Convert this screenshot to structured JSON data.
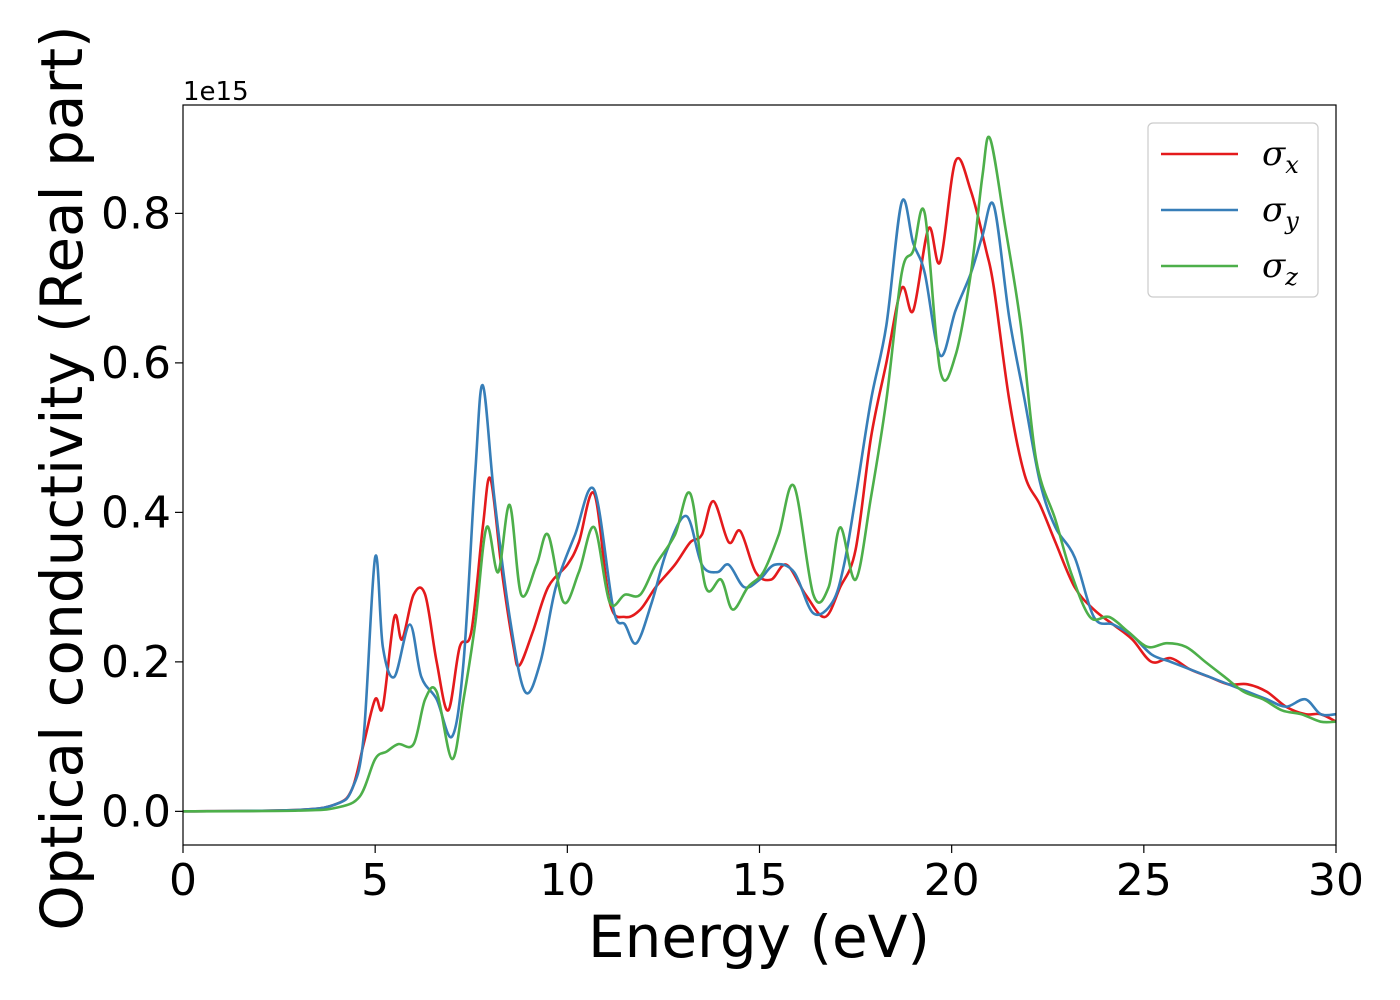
{
  "chart_data": {
    "type": "line",
    "xlabel": "Energy (eV)",
    "ylabel": "Optical conductivity (Real part)",
    "y_offset_label": "1e15",
    "xlim": [
      0,
      30
    ],
    "ylim": [
      -0.045,
      0.945
    ],
    "y_scale": "×1e15",
    "x_ticks": [
      0,
      5,
      10,
      15,
      20,
      25,
      30
    ],
    "x_tick_labels": [
      "0",
      "5",
      "10",
      "15",
      "20",
      "25",
      "30"
    ],
    "y_ticks": [
      0.0,
      0.2,
      0.4,
      0.6,
      0.8
    ],
    "y_tick_labels": [
      "0.0",
      "0.2",
      "0.4",
      "0.6",
      "0.8"
    ],
    "grid": false,
    "legend_position": "top-right",
    "series": [
      {
        "name": "σ",
        "subscript": "x",
        "color": "#e41a1c",
        "points": [
          [
            0,
            0
          ],
          [
            3,
            0.002
          ],
          [
            4,
            0.01
          ],
          [
            4.4,
            0.03
          ],
          [
            4.7,
            0.09
          ],
          [
            5.0,
            0.15
          ],
          [
            5.2,
            0.14
          ],
          [
            5.5,
            0.26
          ],
          [
            5.7,
            0.23
          ],
          [
            6.0,
            0.29
          ],
          [
            6.3,
            0.29
          ],
          [
            6.6,
            0.2
          ],
          [
            6.9,
            0.135
          ],
          [
            7.2,
            0.22
          ],
          [
            7.5,
            0.24
          ],
          [
            7.8,
            0.38
          ],
          [
            8.0,
            0.445
          ],
          [
            8.3,
            0.32
          ],
          [
            8.6,
            0.22
          ],
          [
            8.75,
            0.195
          ],
          [
            9.1,
            0.24
          ],
          [
            9.5,
            0.3
          ],
          [
            10.0,
            0.33
          ],
          [
            10.3,
            0.36
          ],
          [
            10.7,
            0.425
          ],
          [
            11.1,
            0.28
          ],
          [
            11.5,
            0.26
          ],
          [
            11.9,
            0.27
          ],
          [
            12.3,
            0.3
          ],
          [
            12.8,
            0.33
          ],
          [
            13.2,
            0.36
          ],
          [
            13.5,
            0.37
          ],
          [
            13.8,
            0.415
          ],
          [
            14.2,
            0.36
          ],
          [
            14.5,
            0.375
          ],
          [
            14.9,
            0.32
          ],
          [
            15.3,
            0.31
          ],
          [
            15.7,
            0.33
          ],
          [
            16.2,
            0.29
          ],
          [
            16.7,
            0.26
          ],
          [
            17.1,
            0.3
          ],
          [
            17.5,
            0.35
          ],
          [
            17.9,
            0.5
          ],
          [
            18.3,
            0.6
          ],
          [
            18.7,
            0.7
          ],
          [
            19.0,
            0.67
          ],
          [
            19.4,
            0.78
          ],
          [
            19.7,
            0.735
          ],
          [
            20.1,
            0.87
          ],
          [
            20.5,
            0.83
          ],
          [
            20.9,
            0.75
          ],
          [
            21.1,
            0.7
          ],
          [
            21.5,
            0.55
          ],
          [
            21.9,
            0.45
          ],
          [
            22.3,
            0.41
          ],
          [
            22.7,
            0.36
          ],
          [
            23.2,
            0.3
          ],
          [
            23.7,
            0.27
          ],
          [
            24.2,
            0.25
          ],
          [
            24.7,
            0.23
          ],
          [
            25.2,
            0.2
          ],
          [
            25.7,
            0.205
          ],
          [
            26.2,
            0.19
          ],
          [
            26.7,
            0.18
          ],
          [
            27.2,
            0.17
          ],
          [
            27.7,
            0.17
          ],
          [
            28.2,
            0.16
          ],
          [
            28.7,
            0.14
          ],
          [
            29.2,
            0.13
          ],
          [
            29.6,
            0.13
          ],
          [
            30.0,
            0.12
          ]
        ]
      },
      {
        "name": "σ",
        "subscript": "y",
        "color": "#377eb8",
        "points": [
          [
            0,
            0
          ],
          [
            3,
            0.002
          ],
          [
            4,
            0.01
          ],
          [
            4.4,
            0.03
          ],
          [
            4.7,
            0.1
          ],
          [
            5.0,
            0.34
          ],
          [
            5.2,
            0.22
          ],
          [
            5.5,
            0.18
          ],
          [
            5.9,
            0.25
          ],
          [
            6.2,
            0.18
          ],
          [
            6.6,
            0.15
          ],
          [
            7.0,
            0.1
          ],
          [
            7.3,
            0.2
          ],
          [
            7.6,
            0.45
          ],
          [
            7.8,
            0.57
          ],
          [
            8.1,
            0.42
          ],
          [
            8.5,
            0.26
          ],
          [
            8.9,
            0.16
          ],
          [
            9.3,
            0.2
          ],
          [
            9.7,
            0.3
          ],
          [
            10.2,
            0.37
          ],
          [
            10.7,
            0.43
          ],
          [
            11.2,
            0.27
          ],
          [
            11.5,
            0.25
          ],
          [
            11.8,
            0.225
          ],
          [
            12.2,
            0.28
          ],
          [
            12.6,
            0.35
          ],
          [
            13.1,
            0.395
          ],
          [
            13.5,
            0.33
          ],
          [
            13.9,
            0.32
          ],
          [
            14.2,
            0.33
          ],
          [
            14.6,
            0.3
          ],
          [
            15.0,
            0.31
          ],
          [
            15.4,
            0.33
          ],
          [
            15.9,
            0.32
          ],
          [
            16.4,
            0.265
          ],
          [
            16.9,
            0.28
          ],
          [
            17.2,
            0.33
          ],
          [
            17.5,
            0.42
          ],
          [
            17.9,
            0.55
          ],
          [
            18.3,
            0.65
          ],
          [
            18.7,
            0.815
          ],
          [
            19.0,
            0.76
          ],
          [
            19.3,
            0.72
          ],
          [
            19.7,
            0.61
          ],
          [
            20.1,
            0.67
          ],
          [
            20.5,
            0.72
          ],
          [
            20.8,
            0.77
          ],
          [
            21.1,
            0.81
          ],
          [
            21.5,
            0.66
          ],
          [
            21.9,
            0.55
          ],
          [
            22.3,
            0.44
          ],
          [
            22.7,
            0.38
          ],
          [
            23.2,
            0.34
          ],
          [
            23.7,
            0.26
          ],
          [
            24.2,
            0.25
          ],
          [
            24.7,
            0.235
          ],
          [
            25.2,
            0.21
          ],
          [
            25.7,
            0.2
          ],
          [
            26.2,
            0.19
          ],
          [
            26.7,
            0.18
          ],
          [
            27.2,
            0.17
          ],
          [
            27.7,
            0.16
          ],
          [
            28.2,
            0.15
          ],
          [
            28.7,
            0.14
          ],
          [
            29.2,
            0.15
          ],
          [
            29.6,
            0.13
          ],
          [
            30.0,
            0.13
          ]
        ]
      },
      {
        "name": "σ",
        "subscript": "z",
        "color": "#4daf4a",
        "points": [
          [
            0,
            0
          ],
          [
            3,
            0.001
          ],
          [
            4,
            0.005
          ],
          [
            4.6,
            0.02
          ],
          [
            5.0,
            0.07
          ],
          [
            5.3,
            0.08
          ],
          [
            5.6,
            0.09
          ],
          [
            6.0,
            0.09
          ],
          [
            6.3,
            0.15
          ],
          [
            6.6,
            0.16
          ],
          [
            7.0,
            0.07
          ],
          [
            7.3,
            0.15
          ],
          [
            7.6,
            0.25
          ],
          [
            7.9,
            0.38
          ],
          [
            8.2,
            0.32
          ],
          [
            8.5,
            0.41
          ],
          [
            8.8,
            0.29
          ],
          [
            9.2,
            0.33
          ],
          [
            9.5,
            0.37
          ],
          [
            9.9,
            0.28
          ],
          [
            10.3,
            0.32
          ],
          [
            10.7,
            0.38
          ],
          [
            11.1,
            0.28
          ],
          [
            11.5,
            0.29
          ],
          [
            11.9,
            0.29
          ],
          [
            12.3,
            0.33
          ],
          [
            12.8,
            0.37
          ],
          [
            13.2,
            0.425
          ],
          [
            13.6,
            0.3
          ],
          [
            14.0,
            0.31
          ],
          [
            14.3,
            0.27
          ],
          [
            14.7,
            0.3
          ],
          [
            15.1,
            0.32
          ],
          [
            15.5,
            0.37
          ],
          [
            15.9,
            0.435
          ],
          [
            16.4,
            0.29
          ],
          [
            16.8,
            0.3
          ],
          [
            17.1,
            0.38
          ],
          [
            17.5,
            0.31
          ],
          [
            17.9,
            0.42
          ],
          [
            18.3,
            0.55
          ],
          [
            18.7,
            0.72
          ],
          [
            19.0,
            0.75
          ],
          [
            19.3,
            0.8
          ],
          [
            19.7,
            0.59
          ],
          [
            20.1,
            0.61
          ],
          [
            20.5,
            0.72
          ],
          [
            20.8,
            0.85
          ],
          [
            21.0,
            0.9
          ],
          [
            21.4,
            0.78
          ],
          [
            21.8,
            0.65
          ],
          [
            22.2,
            0.47
          ],
          [
            22.7,
            0.39
          ],
          [
            23.1,
            0.32
          ],
          [
            23.6,
            0.26
          ],
          [
            24.1,
            0.26
          ],
          [
            24.6,
            0.24
          ],
          [
            25.1,
            0.22
          ],
          [
            25.6,
            0.225
          ],
          [
            26.1,
            0.22
          ],
          [
            26.6,
            0.2
          ],
          [
            27.1,
            0.18
          ],
          [
            27.6,
            0.16
          ],
          [
            28.1,
            0.15
          ],
          [
            28.6,
            0.135
          ],
          [
            29.1,
            0.13
          ],
          [
            29.6,
            0.12
          ],
          [
            30.0,
            0.12
          ]
        ]
      }
    ]
  }
}
